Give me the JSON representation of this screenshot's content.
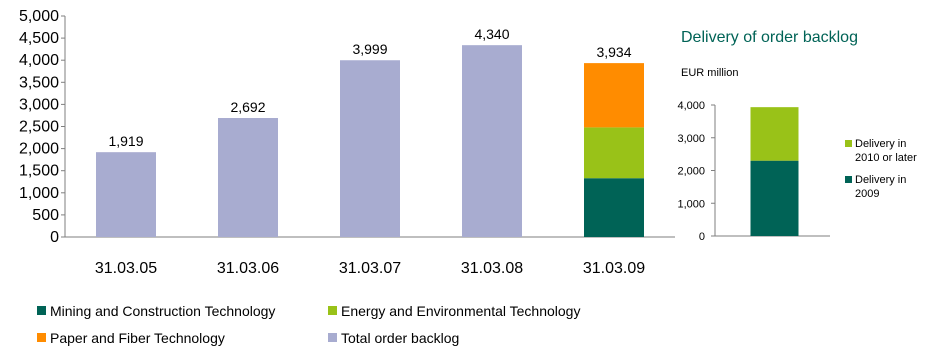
{
  "colors": {
    "mining": "#006356",
    "energy": "#99c218",
    "paper": "#ff8c00",
    "total": "#a8acd0",
    "title2": "#006356",
    "axis": "#7f7f7f"
  },
  "chart_data": [
    {
      "type": "bar",
      "stacked": true,
      "title": "",
      "xlabel": "",
      "ylabel": "",
      "categories": [
        "31.03.05",
        "31.03.06",
        "31.03.07",
        "31.03.08",
        "31.03.09"
      ],
      "ylim": [
        0,
        5000
      ],
      "yticks": [
        "0",
        "500",
        "1,000",
        "1,500",
        "2,000",
        "2,500",
        "3,000",
        "3,500",
        "4,000",
        "4,500",
        "5,000"
      ],
      "series": [
        {
          "name": "Mining and Construction Technology",
          "color_key": "mining",
          "values": [
            0,
            0,
            0,
            0,
            1330
          ]
        },
        {
          "name": "Energy and Environmental Technology",
          "color_key": "energy",
          "values": [
            0,
            0,
            0,
            0,
            1150
          ]
        },
        {
          "name": "Paper and Fiber Technology",
          "color_key": "paper",
          "values": [
            0,
            0,
            0,
            0,
            1454
          ]
        },
        {
          "name": "Total order backlog",
          "color_key": "total",
          "values": [
            1919,
            2692,
            3999,
            4340,
            0
          ]
        }
      ],
      "data_labels": [
        "1,919",
        "2,692",
        "3,999",
        "4,340",
        "3,934"
      ],
      "legend": {
        "position": "bottom",
        "items": [
          {
            "label": "Mining and Construction Technology",
            "color_key": "mining"
          },
          {
            "label": "Energy and Environmental Technology",
            "color_key": "energy"
          },
          {
            "label": "Paper and Fiber Technology",
            "color_key": "paper"
          },
          {
            "label": "Total order backlog",
            "color_key": "total"
          }
        ]
      },
      "grid": false
    },
    {
      "type": "bar",
      "stacked": true,
      "title": "Delivery of order backlog",
      "unit_label": "EUR million",
      "xlabel": "",
      "ylabel": "",
      "categories": [
        ""
      ],
      "ylim": [
        0,
        4000
      ],
      "yticks": [
        "0",
        "1,000",
        "2,000",
        "3,000",
        "4,000"
      ],
      "series": [
        {
          "name": "Delivery in 2009",
          "color_key": "mining",
          "values": [
            2300
          ]
        },
        {
          "name": "Delivery in 2010 or later",
          "color_key": "energy",
          "values": [
            1634
          ]
        }
      ],
      "legend": {
        "position": "right",
        "items": [
          {
            "lines": [
              "Delivery in",
              "2010 or later"
            ],
            "color_key": "energy"
          },
          {
            "lines": [
              "Delivery in",
              "2009"
            ],
            "color_key": "mining"
          }
        ]
      },
      "grid": false
    }
  ]
}
